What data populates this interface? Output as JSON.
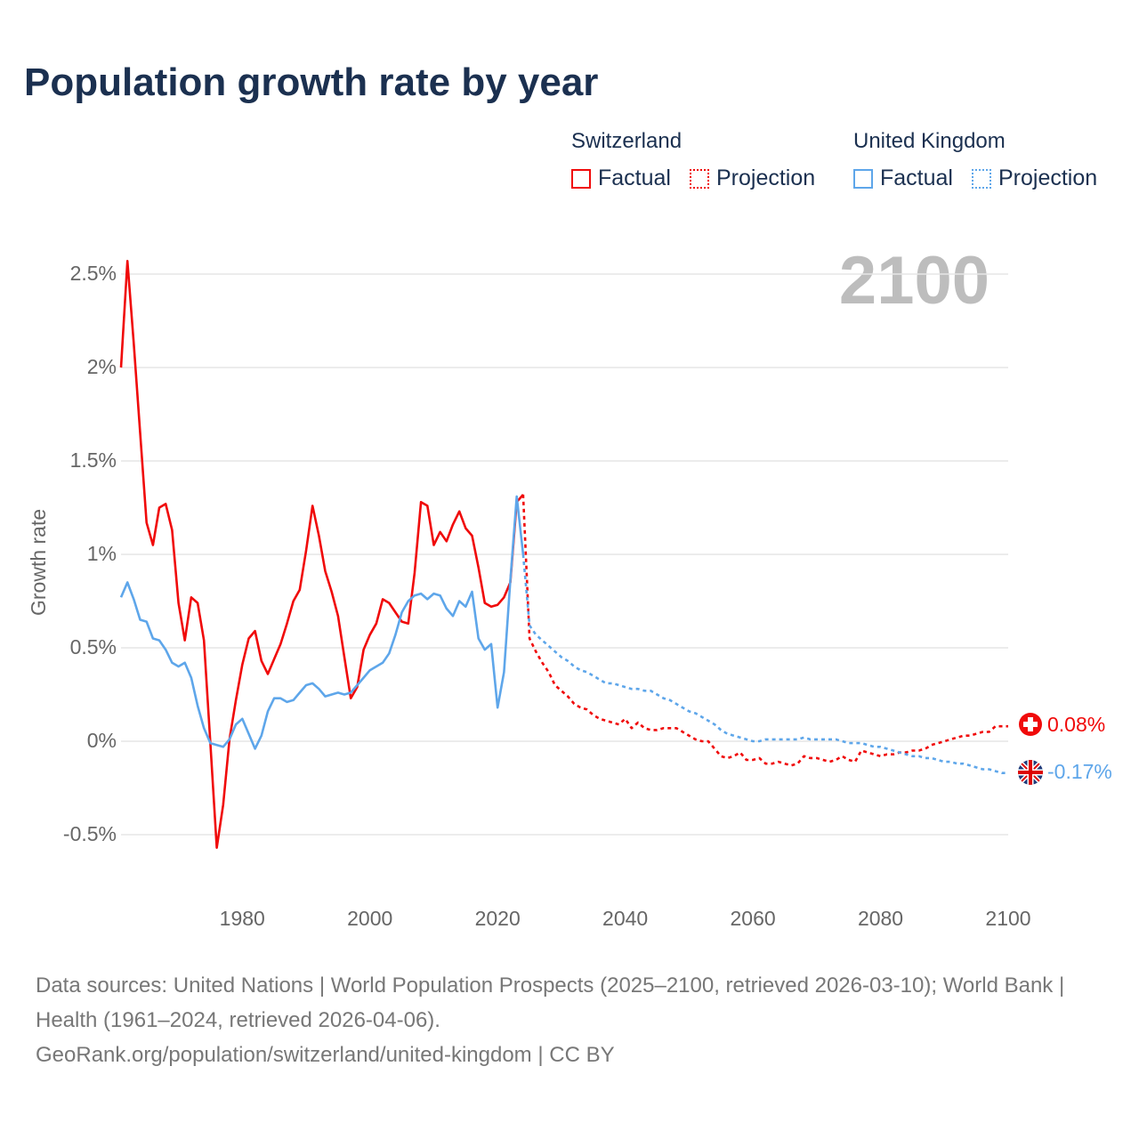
{
  "title": "Population growth rate by year",
  "legend": {
    "groups": [
      {
        "name": "Switzerland",
        "color": "#f00a0a",
        "factual": "Factual",
        "projection": "Projection"
      },
      {
        "name": "United Kingdom",
        "color": "#5ea6ea",
        "factual": "Factual",
        "projection": "Projection"
      }
    ]
  },
  "current_year_label": "2100",
  "end_labels": {
    "switzerland": "0.08%",
    "united_kingdom": "-0.17%"
  },
  "chart_data": {
    "type": "line",
    "title": "Population growth rate by year",
    "xlabel": "",
    "ylabel": "Growth rate",
    "xlim": [
      1961,
      2100
    ],
    "ylim": [
      -0.6,
      2.6
    ],
    "yticks": [
      -0.5,
      0,
      0.5,
      1,
      1.5,
      2,
      2.5
    ],
    "ytick_labels": [
      "-0.5%",
      "0%",
      "0.5%",
      "1%",
      "1.5%",
      "2%",
      "2.5%"
    ],
    "xticks": [
      1980,
      2000,
      2020,
      2040,
      2060,
      2080,
      2100
    ],
    "xtick_labels": [
      "1980",
      "2000",
      "2020",
      "2040",
      "2060",
      "2080",
      "2100"
    ],
    "grid": true,
    "legend_placement": "top-right",
    "series": [
      {
        "name": "Switzerland Factual",
        "color": "#f00a0a",
        "style": "solid",
        "x_start": 1961,
        "values": [
          2.0,
          2.57,
          2.13,
          1.65,
          1.17,
          1.05,
          1.25,
          1.27,
          1.13,
          0.74,
          0.54,
          0.77,
          0.74,
          0.54,
          -0.01,
          -0.57,
          -0.34,
          0.01,
          0.22,
          0.41,
          0.55,
          0.59,
          0.43,
          0.36,
          0.44,
          0.52,
          0.63,
          0.75,
          0.81,
          1.02,
          1.26,
          1.1,
          0.91,
          0.8,
          0.67,
          0.45,
          0.23,
          0.29,
          0.49,
          0.57,
          0.63,
          0.76,
          0.74,
          0.69,
          0.64,
          0.63,
          0.9,
          1.28,
          1.26,
          1.05,
          1.12,
          1.07,
          1.16,
          1.23,
          1.14,
          1.1,
          0.93,
          0.74,
          0.72,
          0.73,
          0.77,
          0.85,
          1.28,
          1.32
        ]
      },
      {
        "name": "Switzerland Projection",
        "color": "#f00a0a",
        "style": "dotted",
        "x_start": 2024,
        "values": [
          1.32,
          0.55,
          0.48,
          0.42,
          0.37,
          0.3,
          0.27,
          0.24,
          0.2,
          0.18,
          0.17,
          0.14,
          0.12,
          0.11,
          0.1,
          0.09,
          0.12,
          0.07,
          0.1,
          0.07,
          0.06,
          0.06,
          0.07,
          0.07,
          0.07,
          0.05,
          0.03,
          0.01,
          0.0,
          0.0,
          -0.04,
          -0.08,
          -0.09,
          -0.08,
          -0.06,
          -0.1,
          -0.1,
          -0.09,
          -0.12,
          -0.12,
          -0.11,
          -0.12,
          -0.13,
          -0.12,
          -0.08,
          -0.09,
          -0.09,
          -0.1,
          -0.11,
          -0.1,
          -0.08,
          -0.1,
          -0.11,
          -0.05,
          -0.06,
          -0.07,
          -0.08,
          -0.07,
          -0.07,
          -0.06,
          -0.06,
          -0.05,
          -0.05,
          -0.04,
          -0.02,
          -0.01,
          0.0,
          0.01,
          0.02,
          0.03,
          0.03,
          0.04,
          0.05,
          0.05,
          0.08,
          0.08,
          0.08
        ]
      },
      {
        "name": "United Kingdom Factual",
        "color": "#5ea6ea",
        "style": "solid",
        "x_start": 1961,
        "values": [
          0.77,
          0.85,
          0.76,
          0.65,
          0.64,
          0.55,
          0.54,
          0.49,
          0.42,
          0.4,
          0.42,
          0.34,
          0.19,
          0.07,
          -0.01,
          -0.02,
          -0.03,
          0.01,
          0.09,
          0.12,
          0.04,
          -0.04,
          0.03,
          0.16,
          0.23,
          0.23,
          0.21,
          0.22,
          0.26,
          0.3,
          0.31,
          0.28,
          0.24,
          0.25,
          0.26,
          0.25,
          0.26,
          0.3,
          0.34,
          0.38,
          0.4,
          0.42,
          0.47,
          0.57,
          0.69,
          0.75,
          0.78,
          0.79,
          0.76,
          0.79,
          0.78,
          0.71,
          0.67,
          0.75,
          0.72,
          0.8,
          0.55,
          0.49,
          0.52,
          0.18,
          0.37,
          0.86,
          1.31,
          1.0
        ]
      },
      {
        "name": "United Kingdom Projection",
        "color": "#5ea6ea",
        "style": "dotted",
        "x_start": 2024,
        "values": [
          1.0,
          0.62,
          0.57,
          0.54,
          0.51,
          0.48,
          0.45,
          0.43,
          0.4,
          0.38,
          0.37,
          0.35,
          0.33,
          0.31,
          0.31,
          0.3,
          0.29,
          0.28,
          0.28,
          0.27,
          0.27,
          0.25,
          0.23,
          0.22,
          0.2,
          0.18,
          0.16,
          0.15,
          0.13,
          0.11,
          0.09,
          0.06,
          0.04,
          0.03,
          0.02,
          0.01,
          0.0,
          0.0,
          0.01,
          0.01,
          0.01,
          0.01,
          0.01,
          0.01,
          0.02,
          0.01,
          0.01,
          0.01,
          0.01,
          0.01,
          0.0,
          -0.01,
          -0.01,
          -0.01,
          -0.02,
          -0.03,
          -0.03,
          -0.04,
          -0.05,
          -0.06,
          -0.07,
          -0.08,
          -0.08,
          -0.09,
          -0.09,
          -0.1,
          -0.11,
          -0.11,
          -0.12,
          -0.12,
          -0.13,
          -0.14,
          -0.15,
          -0.15,
          -0.16,
          -0.17,
          -0.17
        ]
      }
    ]
  },
  "footer": {
    "sources": "Data sources: United Nations | World Population Prospects (2025–2100, retrieved 2026-03-10); World Bank | Health (1961–2024, retrieved 2026-04-06).",
    "attribution": "GeoRank.org/population/switzerland/united-kingdom | CC BY"
  }
}
